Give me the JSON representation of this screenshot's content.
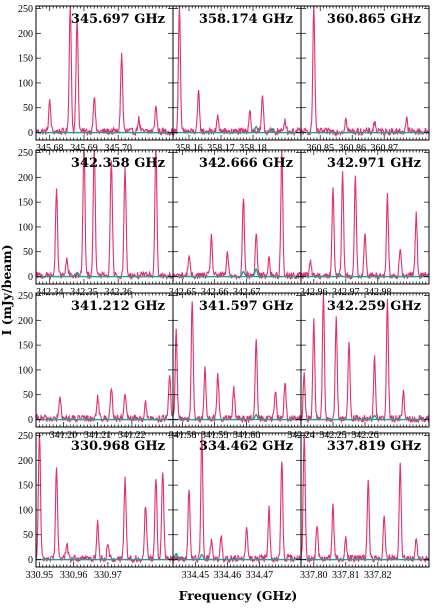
{
  "chart_data": {
    "type": "line",
    "xlabel": "Frequency (GHz)",
    "ylabel": "I (mJy/beam)",
    "ylim": [
      -15,
      255
    ],
    "yticks": [
      "0",
      "50",
      "100",
      "150",
      "200",
      "250"
    ],
    "colors": {
      "observed": "#e0306e",
      "model": "#1d9e9b"
    },
    "panels": [
      {
        "label": "345.697 GHz",
        "xlim": [
          345.676,
          345.716
        ],
        "xticks": [
          "345.68",
          "345.69",
          "345.70"
        ],
        "peaks": [
          [
            345.686,
            255
          ],
          [
            345.688,
            230
          ],
          [
            345.701,
            155
          ],
          [
            345.693,
            70
          ],
          [
            345.68,
            60
          ],
          [
            345.711,
            50
          ],
          [
            345.706,
            25
          ]
        ],
        "model_peaks": []
      },
      {
        "label": "358.174 GHz",
        "xlim": [
          358.155,
          358.195
        ],
        "xticks": [
          "358.16",
          "358.17",
          "358.18"
        ],
        "peaks": [
          [
            358.157,
            255
          ],
          [
            358.163,
            80
          ],
          [
            358.183,
            70
          ],
          [
            358.179,
            45
          ],
          [
            358.169,
            30
          ],
          [
            358.19,
            25
          ]
        ],
        "model_peaks": [
          [
            358.181,
            12
          ],
          [
            358.186,
            8
          ]
        ]
      },
      {
        "label": "360.865 GHz",
        "xlim": [
          360.844,
          360.884
        ],
        "xticks": [
          "360.85",
          "360.86",
          "360.87"
        ],
        "peaks": [
          [
            360.848,
            255
          ],
          [
            360.858,
            25
          ],
          [
            360.867,
            20
          ],
          [
            360.877,
            25
          ]
        ],
        "model_peaks": []
      },
      {
        "label": "342.358 GHz",
        "xlim": [
          342.336,
          342.376
        ],
        "xticks": [
          "342.34",
          "342.35",
          "342.36"
        ],
        "peaks": [
          [
            342.342,
            170
          ],
          [
            342.35,
            255
          ],
          [
            342.353,
            255
          ],
          [
            342.358,
            230
          ],
          [
            342.362,
            215
          ],
          [
            342.371,
            255
          ],
          [
            342.345,
            30
          ]
        ],
        "model_peaks": [
          [
            342.348,
            8
          ]
        ]
      },
      {
        "label": "342.666 GHz",
        "xlim": [
          342.647,
          342.687
        ],
        "xticks": [
          "342.65",
          "342.66",
          "342.67"
        ],
        "peaks": [
          [
            342.669,
            160
          ],
          [
            342.659,
            80
          ],
          [
            342.673,
            85
          ],
          [
            342.677,
            35
          ],
          [
            342.681,
            255
          ],
          [
            342.652,
            40
          ],
          [
            342.664,
            45
          ]
        ],
        "model_peaks": [
          [
            342.669,
            10
          ],
          [
            342.673,
            15
          ]
        ]
      },
      {
        "label": "342.971 GHz",
        "xlim": [
          342.956,
          342.996
        ],
        "xticks": [
          "342.96",
          "342.97",
          "342.98"
        ],
        "peaks": [
          [
            342.966,
            180
          ],
          [
            342.969,
            210
          ],
          [
            342.973,
            200
          ],
          [
            342.976,
            90
          ],
          [
            342.983,
            160
          ],
          [
            342.987,
            60
          ],
          [
            342.992,
            125
          ],
          [
            342.959,
            30
          ]
        ],
        "model_peaks": [
          [
            342.968,
            6
          ]
        ]
      },
      {
        "label": "341.212 GHz",
        "xlim": [
          341.192,
          341.232
        ],
        "xticks": [
          "341.20",
          "341.21",
          "341.22"
        ],
        "peaks": [
          [
            341.199,
            40
          ],
          [
            341.21,
            45
          ],
          [
            341.214,
            65
          ],
          [
            341.218,
            45
          ],
          [
            341.224,
            30
          ],
          [
            341.231,
            85
          ]
        ],
        "model_peaks": []
      },
      {
        "label": "341.597 GHz",
        "xlim": [
          341.577,
          341.617
        ],
        "xticks": [
          "341.58",
          "341.59",
          "341.60"
        ],
        "peaks": [
          [
            341.578,
            175
          ],
          [
            341.583,
            240
          ],
          [
            341.587,
            100
          ],
          [
            341.591,
            90
          ],
          [
            341.596,
            60
          ],
          [
            341.603,
            160
          ],
          [
            341.612,
            75
          ],
          [
            341.609,
            55
          ]
        ],
        "model_peaks": [
          [
            341.603,
            10
          ]
        ]
      },
      {
        "label": "342.259 GHz",
        "xlim": [
          342.24,
          342.28
        ],
        "xticks": [
          "342.24",
          "342.25",
          "342.26"
        ],
        "peaks": [
          [
            342.244,
            195
          ],
          [
            342.247,
            255
          ],
          [
            342.251,
            200
          ],
          [
            342.255,
            160
          ],
          [
            342.263,
            125
          ],
          [
            342.267,
            240
          ],
          [
            342.272,
            55
          ],
          [
            342.241,
            90
          ]
        ],
        "model_peaks": [
          [
            342.263,
            8
          ]
        ]
      },
      {
        "label": "330.968 GHz",
        "xlim": [
          330.949,
          330.989
        ],
        "xticks": [
          "330.95",
          "330.96",
          "330.97"
        ],
        "peaks": [
          [
            330.95,
            255
          ],
          [
            330.955,
            185
          ],
          [
            330.958,
            30
          ],
          [
            330.967,
            75
          ],
          [
            330.975,
            160
          ],
          [
            330.981,
            110
          ],
          [
            330.984,
            165
          ],
          [
            330.986,
            175
          ],
          [
            330.97,
            30
          ]
        ],
        "model_peaks": []
      },
      {
        "label": "334.462 GHz",
        "xlim": [
          334.443,
          334.483
        ],
        "xticks": [
          "334.45",
          "334.46",
          "334.47"
        ],
        "peaks": [
          [
            334.448,
            140
          ],
          [
            334.452,
            255
          ],
          [
            334.455,
            35
          ],
          [
            334.458,
            45
          ],
          [
            334.466,
            65
          ],
          [
            334.473,
            100
          ],
          [
            334.477,
            200
          ]
        ],
        "model_peaks": [
          [
            334.444,
            12
          ],
          [
            334.452,
            10
          ]
        ]
      },
      {
        "label": "337.819 GHz",
        "xlim": [
          337.796,
          337.836
        ],
        "xticks": [
          "337.80",
          "337.81",
          "337.82"
        ],
        "peaks": [
          [
            337.797,
            255
          ],
          [
            337.801,
            65
          ],
          [
            337.806,
            105
          ],
          [
            337.81,
            40
          ],
          [
            337.817,
            160
          ],
          [
            337.822,
            90
          ],
          [
            337.827,
            190
          ],
          [
            337.832,
            35
          ]
        ],
        "model_peaks": []
      }
    ]
  }
}
